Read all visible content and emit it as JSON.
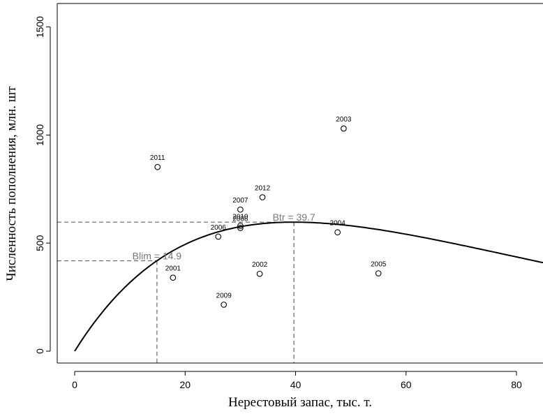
{
  "chart_data": {
    "type": "scatter",
    "xlabel": "Нерестовый запас, тыс. т.",
    "ylabel": "Численность пополнения, млн. шт",
    "xlim": [
      -3,
      85
    ],
    "ylim": [
      -60,
      1620
    ],
    "xticks": [
      0,
      20,
      40,
      60,
      80
    ],
    "yticks": [
      0,
      500,
      1000,
      1500
    ],
    "points": [
      {
        "label": "2001",
        "x": 17.8,
        "y": 340
      },
      {
        "label": "2002",
        "x": 33.5,
        "y": 358
      },
      {
        "label": "2003",
        "x": 48.7,
        "y": 1030
      },
      {
        "label": "2004",
        "x": 47.6,
        "y": 550
      },
      {
        "label": "2005",
        "x": 55.0,
        "y": 360
      },
      {
        "label": "2006",
        "x": 26.0,
        "y": 530
      },
      {
        "label": "2007",
        "x": 30.0,
        "y": 655
      },
      {
        "label": "2008",
        "x": 30.0,
        "y": 570
      },
      {
        "label": "2009",
        "x": 27.0,
        "y": 215
      },
      {
        "label": "2010",
        "x": 30.0,
        "y": 580
      },
      {
        "label": "2011",
        "x": 15.0,
        "y": 852
      },
      {
        "label": "2012",
        "x": 34.0,
        "y": 712
      }
    ],
    "curve": {
      "type": "ricker",
      "x_max": 39.7,
      "y_max": 597
    },
    "reference_lines": [
      {
        "label": "Blim = 14.9",
        "x": 14.9,
        "y": 418
      },
      {
        "label": "Btr = 39.7",
        "x": 39.7,
        "y": 597
      }
    ]
  }
}
